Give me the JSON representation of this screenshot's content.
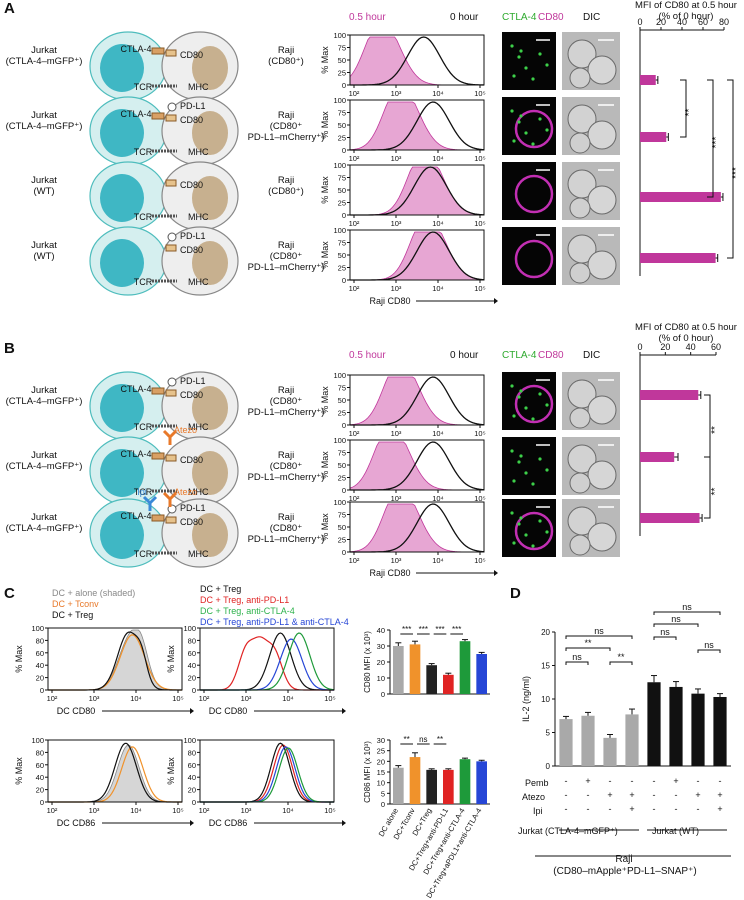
{
  "panels": {
    "A": "A",
    "B": "B",
    "C": "C",
    "D": "D"
  },
  "panelA": {
    "rows": [
      {
        "left": "Jurkat\n(CTLA-4–mGFP⁺)",
        "right": "Raji\n(CD80⁺)",
        "ligands": [
          "CTLA-4",
          "CD80",
          "TCR",
          "MHC"
        ]
      },
      {
        "left": "Jurkat\n(CTLA-4–mGFP⁺)",
        "right": "Raji\n(CD80⁺\nPD-L1–mCherry⁺)",
        "ligands": [
          "PD-L1",
          "CTLA-4",
          "CD80",
          "TCR",
          "MHC"
        ]
      },
      {
        "left": "Jurkat\n(WT)",
        "right": "Raji\n(CD80⁺)",
        "ligands": [
          "CD80",
          "TCR",
          "MHC"
        ]
      },
      {
        "left": "Jurkat\n(WT)",
        "right": "Raji\n(CD80⁺\nPD-L1–mCherry⁺)",
        "ligands": [
          "PD-L1",
          "CD80",
          "TCR",
          "MHC"
        ]
      }
    ],
    "hist_legend": {
      "shaded": "0.5 hour",
      "line": "0 hour"
    },
    "hist_ylabel": "% Max",
    "hist_xlabel": "Raji CD80",
    "hist_yticks": [
      "0",
      "25",
      "50",
      "75",
      "100"
    ],
    "hist_xticks": [
      "10²",
      "10³",
      "10⁴",
      "10⁵"
    ],
    "micro_header": {
      "ctla4": "CTLA-4",
      "cd80": "CD80",
      "dic": "DIC"
    },
    "bar_title": "MFI of CD80 at 0.5 hour\n(% of 0 hour)",
    "bar_ticks": [
      "0",
      "20",
      "40",
      "60",
      "80"
    ],
    "sig": [
      "**",
      "***",
      "***"
    ]
  },
  "panelB": {
    "rows": [
      {
        "left": "Jurkat\n(CTLA-4–mGFP⁺)",
        "right": "Raji\n(CD80⁺\nPD-L1–mCherry⁺)",
        "ligands": [
          "PD-L1",
          "CTLA-4",
          "CD80",
          "TCR",
          "MHC"
        ]
      },
      {
        "left": "Jurkat\n(CTLA-4–mGFP⁺)",
        "right": "Raji\n(CD80⁺\nPD-L1–mCherry⁺)",
        "ligands": [
          "Atezo",
          "CTLA-4",
          "CD80",
          "TCR",
          "MHC"
        ]
      },
      {
        "left": "Jurkat\n(CTLA-4–mGFP⁺)",
        "right": "Raji\n(CD80⁺\nPD-L1–mCherry⁺)",
        "ligands": [
          "Ipi",
          "Atezo",
          "CTLA-4",
          "PD-L1",
          "CD80",
          "TCR",
          "MHC"
        ]
      }
    ],
    "bar_title": "MFI of CD80 at 0.5 hour\n(% of 0 hour)",
    "bar_ticks": [
      "0",
      "20",
      "40",
      "60"
    ],
    "sig": [
      "**",
      "**"
    ]
  },
  "panelC": {
    "legend1": [
      "DC + alone (shaded)",
      "DC + Tconv",
      "DC + Treg"
    ],
    "legend2": [
      "DC + Treg",
      "DC + Treg, anti-PD-L1",
      "DC + Treg, anti-CTLA-4",
      "DC + Treg, anti-PD-L1 & anti-CTLA-4"
    ],
    "xlabel_top": "DC CD80",
    "xlabel_bottom": "DC CD86",
    "ylabel": "% Max",
    "yticks": [
      "0",
      "20",
      "40",
      "60",
      "80",
      "100"
    ],
    "xticks": [
      "10²",
      "10³",
      "10⁴",
      "10⁵"
    ],
    "bar_ylabel_top": "CD80 MFI (x 10³)",
    "bar_ylabel_bottom": "CD86 MFI (x 10³)",
    "bar_yticks_top": [
      "0",
      "10",
      "20",
      "30",
      "40"
    ],
    "bar_yticks_bottom": [
      "0",
      "5",
      "10",
      "15",
      "20",
      "25",
      "30"
    ],
    "bar_categories": [
      "DC alone",
      "DC+Tconv",
      "DC+Treg",
      "DC+Treg+anti-PD-L1",
      "DC+Treg+anti-CTLA-4",
      "DC+Treg+aPDL1+anti-CTLA-4"
    ],
    "sig_top": [
      "***",
      "***",
      "***",
      "***"
    ],
    "sig_bottom": [
      "**",
      "ns",
      "**"
    ]
  },
  "panelD": {
    "ylabel": "IL-2 (ng/ml)",
    "yticks": [
      "0",
      "5",
      "10",
      "15",
      "20"
    ],
    "row_labels": [
      "Pemb",
      "Atezo",
      "Ipi"
    ],
    "pemb": [
      "-",
      "+",
      "-",
      "-",
      "-",
      "+",
      "-",
      "-"
    ],
    "atezo": [
      "-",
      "-",
      "+",
      "+",
      "-",
      "-",
      "+",
      "+"
    ],
    "ipi": [
      "-",
      "-",
      "-",
      "+",
      "-",
      "-",
      "-",
      "+"
    ],
    "group1": "Jurkat (CTLA-4–mGFP⁺)",
    "group2": "Jurkat (WT)",
    "raji": "Raji",
    "raji_sub": "(CD80–mApple⁺PD-L1–SNAP⁺)",
    "sig": [
      "ns",
      "**",
      "ns",
      "**",
      "ns",
      "ns",
      "ns",
      "ns"
    ]
  },
  "chart_data": [
    {
      "type": "bar",
      "title": "MFI of CD80 at 0.5 hour (% of 0 hour)",
      "categories": [
        "Jurkat CTLA-4 + Raji CD80",
        "Jurkat CTLA-4 + Raji CD80 PD-L1",
        "Jurkat WT + Raji CD80",
        "Jurkat WT + Raji CD80 PD-L1"
      ],
      "values": [
        15,
        25,
        77,
        72
      ],
      "errors": [
        2,
        2,
        2,
        2
      ],
      "orientation": "horizontal",
      "xlim": [
        0,
        80
      ],
      "color": "#c0379b"
    },
    {
      "type": "bar",
      "title": "MFI of CD80 at 0.5 hour (% of 0 hour)",
      "categories": [
        "CTLA-4 + PD-L1",
        "Atezo",
        "Ipi + Atezo"
      ],
      "values": [
        46,
        27,
        47
      ],
      "errors": [
        2,
        3,
        2
      ],
      "orientation": "horizontal",
      "xlim": [
        0,
        60
      ],
      "color": "#c0379b"
    },
    {
      "type": "bar",
      "ylabel": "CD80 MFI (x 10³)",
      "categories": [
        "DC alone",
        "DC+Tconv",
        "DC+Treg",
        "DC+Treg+anti-PD-L1",
        "DC+Treg+anti-CTLA-4",
        "DC+Treg+aPDL1+anti-CTLA-4"
      ],
      "values": [
        30,
        31,
        18,
        12,
        33,
        25
      ],
      "errors": [
        2,
        2,
        1,
        1,
        1,
        1
      ],
      "colors": [
        "#a9a9a9",
        "#f0922b",
        "#222222",
        "#e02424",
        "#1e9a3a",
        "#2646d6"
      ],
      "ylim": [
        0,
        40
      ]
    },
    {
      "type": "bar",
      "ylabel": "CD86 MFI (x 10³)",
      "categories": [
        "DC alone",
        "DC+Tconv",
        "DC+Treg",
        "DC+Treg+anti-PD-L1",
        "DC+Treg+anti-CTLA-4",
        "DC+Treg+aPDL1+anti-CTLA-4"
      ],
      "values": [
        17,
        22,
        16,
        16,
        21,
        20
      ],
      "errors": [
        1,
        2,
        0.5,
        0.5,
        0.5,
        0.5
      ],
      "colors": [
        "#a9a9a9",
        "#f0922b",
        "#222222",
        "#e02424",
        "#1e9a3a",
        "#2646d6"
      ],
      "ylim": [
        0,
        30
      ]
    },
    {
      "type": "bar",
      "ylabel": "IL-2 (ng/ml)",
      "categories": [
        "1",
        "2",
        "3",
        "4",
        "5",
        "6",
        "7",
        "8"
      ],
      "values": [
        7,
        7.5,
        4.2,
        7.7,
        12.5,
        11.8,
        10.8,
        10.3
      ],
      "errors": [
        0.4,
        0.5,
        0.5,
        0.8,
        1.0,
        0.8,
        0.7,
        0.5
      ],
      "colors": [
        "#a9a9a9",
        "#a9a9a9",
        "#a9a9a9",
        "#a9a9a9",
        "#111111",
        "#111111",
        "#111111",
        "#111111"
      ],
      "ylim": [
        0,
        20
      ]
    }
  ]
}
